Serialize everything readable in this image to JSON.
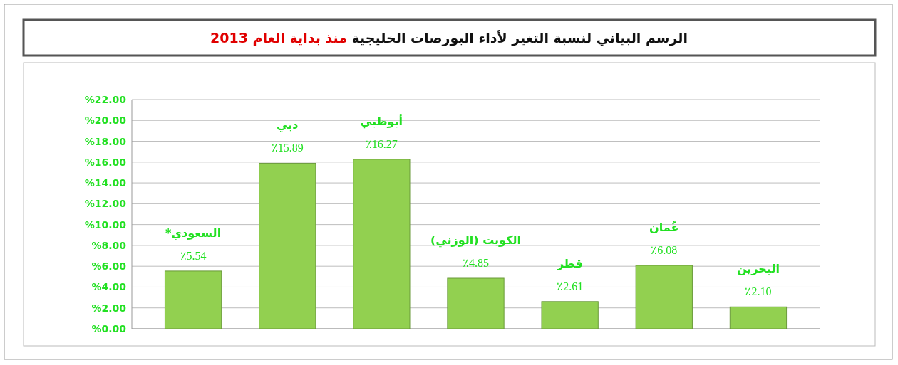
{
  "chart_data": {
    "type": "bar",
    "title": "الرسم البياني لنسبة التغير لأداء البورصات الخليجية",
    "subtitle": "منذ بداية العام 2013",
    "categories": [
      "السعودي*",
      "دبي",
      "أبوظبي",
      "الكويت (الوزني)",
      "قطر",
      "عُمان",
      "البحرين"
    ],
    "values": [
      5.54,
      15.89,
      16.27,
      4.85,
      2.61,
      6.08,
      2.1
    ],
    "value_labels": [
      "٪5.54",
      "٪15.89",
      "٪16.27",
      "٪4.85",
      "٪2.61",
      "٪6.08",
      "٪2.10"
    ],
    "color": "#92d050",
    "ylim": [
      0,
      22
    ],
    "yticks": [
      {
        "value": 0,
        "label": "%0.00"
      },
      {
        "value": 2,
        "label": "%2.00"
      },
      {
        "value": 4,
        "label": "%4.00"
      },
      {
        "value": 6,
        "label": "%6.00"
      },
      {
        "value": 8,
        "label": "%8.00"
      },
      {
        "value": 10,
        "label": "%10.00"
      },
      {
        "value": 12,
        "label": "%12.00"
      },
      {
        "value": 14,
        "label": "%14.00"
      },
      {
        "value": 16,
        "label": "%16.00"
      },
      {
        "value": 18,
        "label": "%18.00"
      },
      {
        "value": 20,
        "label": "%20.00"
      },
      {
        "value": 22,
        "label": "%22.00"
      }
    ],
    "grid": "y"
  }
}
